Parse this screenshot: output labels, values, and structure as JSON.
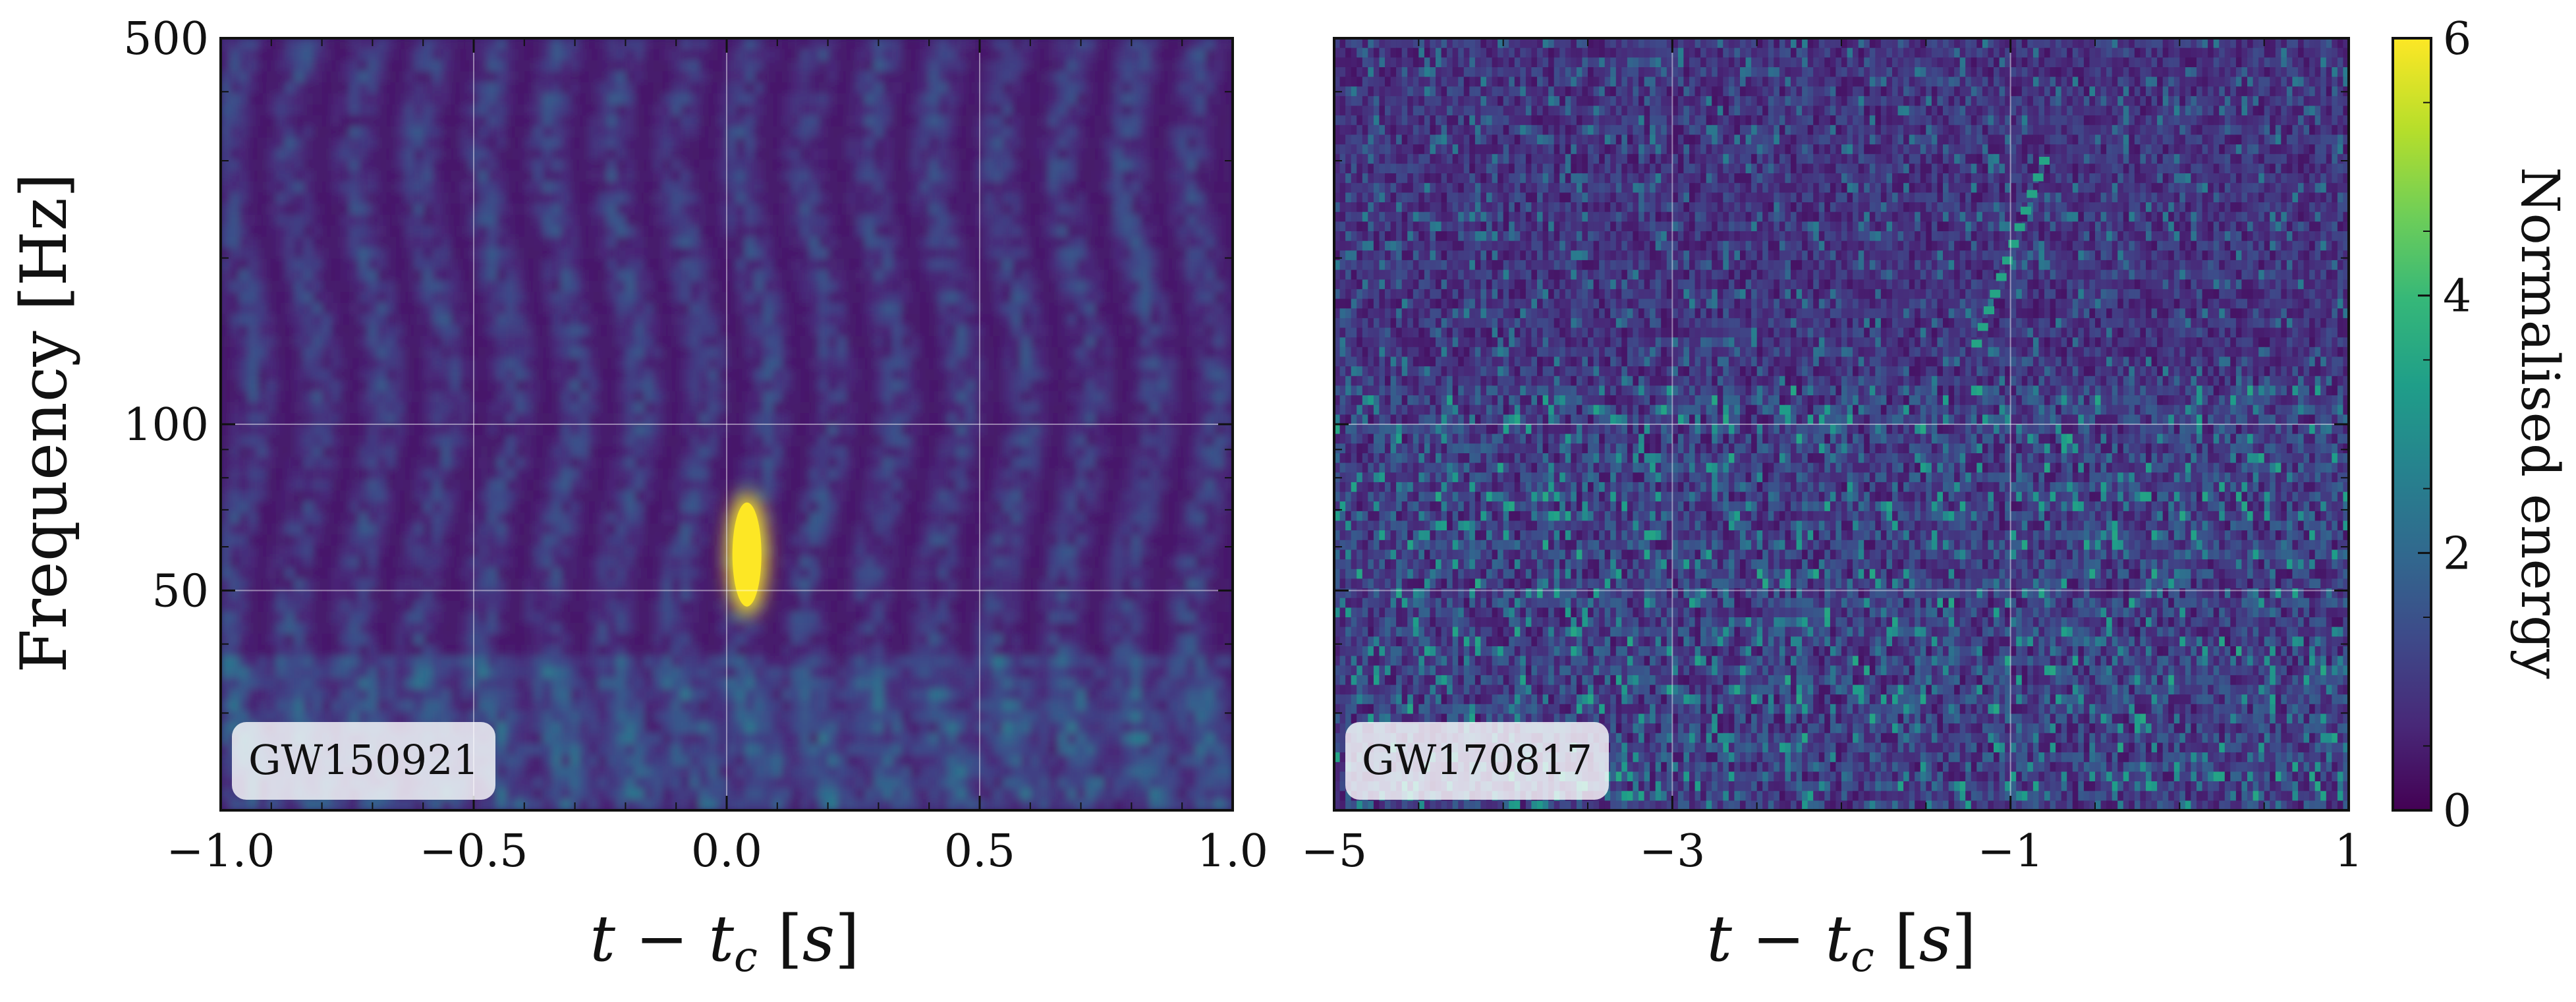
{
  "figure": {
    "y_axis_label": "Frequency [Hz]",
    "colorbar_label": "Normalised energy"
  },
  "chart_data": [
    {
      "type": "heatmap",
      "panel": "left",
      "event_label": "GW150921",
      "xlabel": "t − t_c [s]",
      "ylabel": "Frequency [Hz]",
      "x_range": [
        -1.0,
        1.0
      ],
      "y_range": [
        20,
        500
      ],
      "y_scale": "log",
      "x_ticks": [
        -1.0,
        -0.5,
        0.0,
        0.5,
        1.0
      ],
      "x_tick_labels": [
        "−1.0",
        "−0.5",
        "0.0",
        "0.5",
        "1.0"
      ],
      "y_ticks": [
        50,
        100,
        500
      ],
      "y_tick_labels": [
        "50",
        "100",
        "500"
      ],
      "grid": true,
      "colormap": "viridis",
      "color_range": [
        0,
        6
      ],
      "features": [
        {
          "description": "bright chirp blob",
          "t_center": 0.04,
          "f_low": 45,
          "f_high": 75,
          "energy": 6
        }
      ]
    },
    {
      "type": "heatmap",
      "panel": "right",
      "event_label": "GW170817",
      "xlabel": "t − t_c [s]",
      "x_range": [
        -5,
        1
      ],
      "y_range": [
        20,
        500
      ],
      "y_scale": "log",
      "x_ticks": [
        -5,
        -3,
        -1,
        1
      ],
      "x_tick_labels": [
        "−5",
        "−3",
        "−1",
        "1"
      ],
      "grid": true,
      "colormap": "viridis",
      "color_range": [
        0,
        6
      ],
      "features": [
        {
          "description": "faint rising chirp track",
          "t_start": -1.2,
          "t_end": -0.8,
          "f_start": 140,
          "f_end": 300,
          "energy": 3.5
        }
      ]
    }
  ],
  "colorbar": {
    "ticks": [
      0,
      2,
      4,
      6
    ],
    "tick_labels": [
      "0",
      "2",
      "4",
      "6"
    ],
    "range": [
      0,
      6
    ],
    "colors": [
      "#440154",
      "#482878",
      "#3e4989",
      "#31688e",
      "#26828e",
      "#1f9e89",
      "#35b779",
      "#6ece58",
      "#b5de2b",
      "#fde725"
    ]
  }
}
